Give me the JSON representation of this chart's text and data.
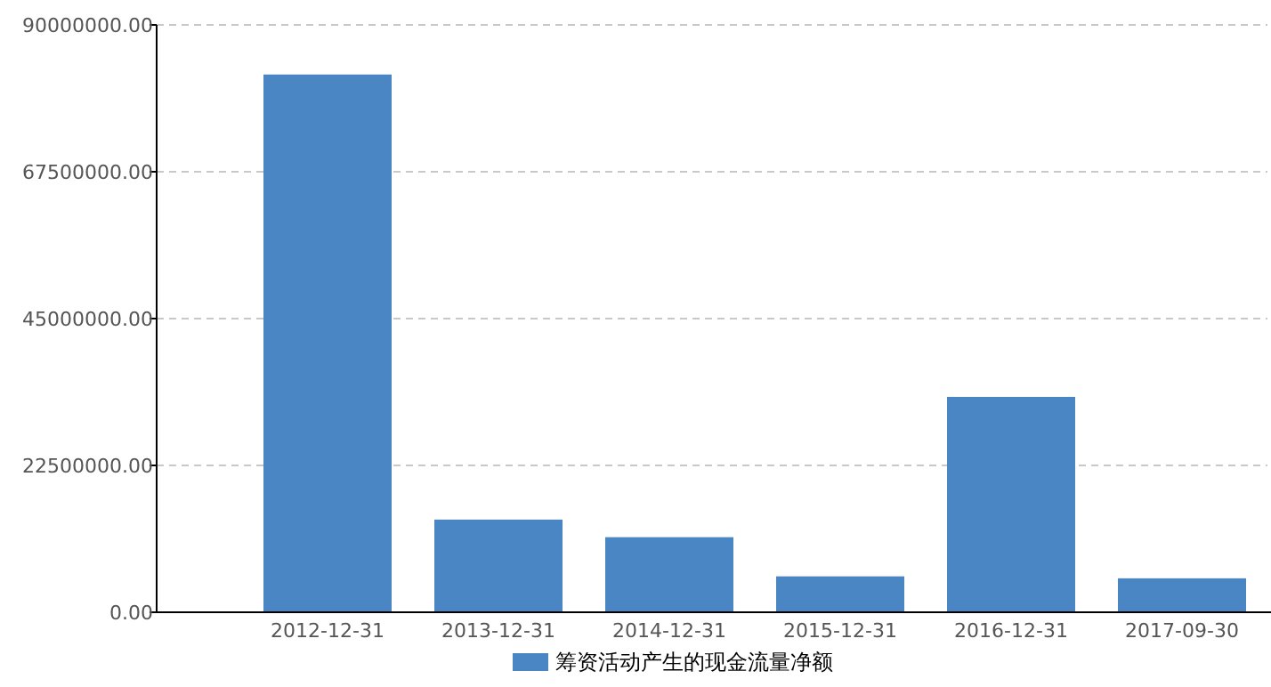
{
  "chart_data": {
    "type": "bar",
    "categories": [
      "2012-12-31",
      "2013-12-31",
      "2014-12-31",
      "2015-12-31",
      "2016-12-31",
      "2017-09-30"
    ],
    "series": [
      {
        "name": "筹资活动产生的现金流量净额",
        "color": "#4a85c4",
        "values": [
          82400000,
          14200000,
          11500000,
          5500000,
          33000000,
          5200000
        ]
      }
    ],
    "ylim": [
      0,
      90000000
    ],
    "yticks": [
      {
        "value": 0,
        "label": "0.00"
      },
      {
        "value": 22500000,
        "label": "22500000.00"
      },
      {
        "value": 45000000,
        "label": "45000000.00"
      },
      {
        "value": 67500000,
        "label": "67500000.00"
      },
      {
        "value": 90000000,
        "label": "90000000.00"
      }
    ],
    "grid": "y",
    "legend": "bottom"
  }
}
